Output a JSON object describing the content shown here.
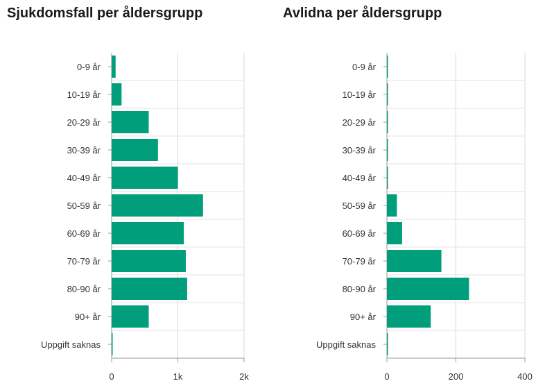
{
  "chart_data": [
    {
      "type": "bar",
      "orientation": "horizontal",
      "title": "Sjukdomsfall per åldersgrupp",
      "categories": [
        "0-9 år",
        "10-19 år",
        "20-29 år",
        "30-39 år",
        "40-49 år",
        "50-59 år",
        "60-69 år",
        "70-79 år",
        "80-90 år",
        "90+ år",
        "Uppgift saknas"
      ],
      "values": [
        60,
        150,
        560,
        700,
        1000,
        1380,
        1090,
        1120,
        1140,
        560,
        5
      ],
      "xlim": [
        0,
        2000
      ],
      "xticks": [
        0,
        1000,
        2000
      ],
      "xtick_labels": [
        "0",
        "1k",
        "2k"
      ],
      "grid": true,
      "color": "#009e7a"
    },
    {
      "type": "bar",
      "orientation": "horizontal",
      "title": "Avlidna per åldersgrupp",
      "categories": [
        "0-9 år",
        "10-19 år",
        "20-29 år",
        "30-39 år",
        "40-49 år",
        "50-59 år",
        "60-69 år",
        "70-79 år",
        "80-90 år",
        "90+ år",
        "Uppgift saknas"
      ],
      "values": [
        0,
        0,
        2,
        1,
        2,
        29,
        44,
        158,
        238,
        127,
        1
      ],
      "xlim": [
        0,
        400
      ],
      "xticks": [
        0,
        200,
        400
      ],
      "xtick_labels": [
        "0",
        "200",
        "400"
      ],
      "grid": true,
      "color": "#009e7a"
    }
  ]
}
